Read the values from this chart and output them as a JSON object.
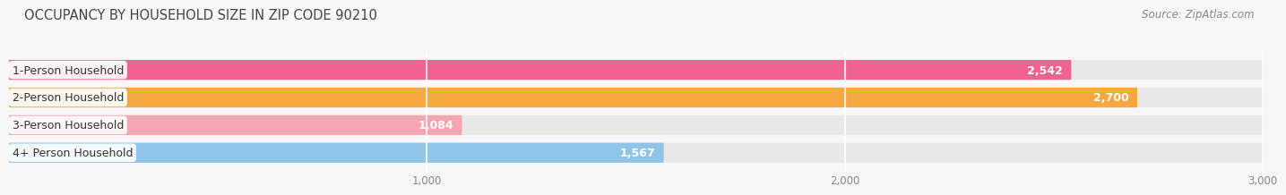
{
  "title": "OCCUPANCY BY HOUSEHOLD SIZE IN ZIP CODE 90210",
  "source": "Source: ZipAtlas.com",
  "categories": [
    "1-Person Household",
    "2-Person Household",
    "3-Person Household",
    "4+ Person Household"
  ],
  "values": [
    2542,
    2700,
    1084,
    1567
  ],
  "bar_colors": [
    "#f06292",
    "#f5a742",
    "#f4a7b0",
    "#90c4e8"
  ],
  "bar_bg_color": "#e8e8e8",
  "xlim_max": 3000,
  "xticks": [
    1000,
    2000,
    3000
  ],
  "title_fontsize": 10.5,
  "source_fontsize": 8.5,
  "label_fontsize": 9,
  "value_fontsize": 9,
  "tick_fontsize": 8.5,
  "bar_height": 0.72,
  "bar_gap": 0.18,
  "background_color": "#f7f7f7"
}
